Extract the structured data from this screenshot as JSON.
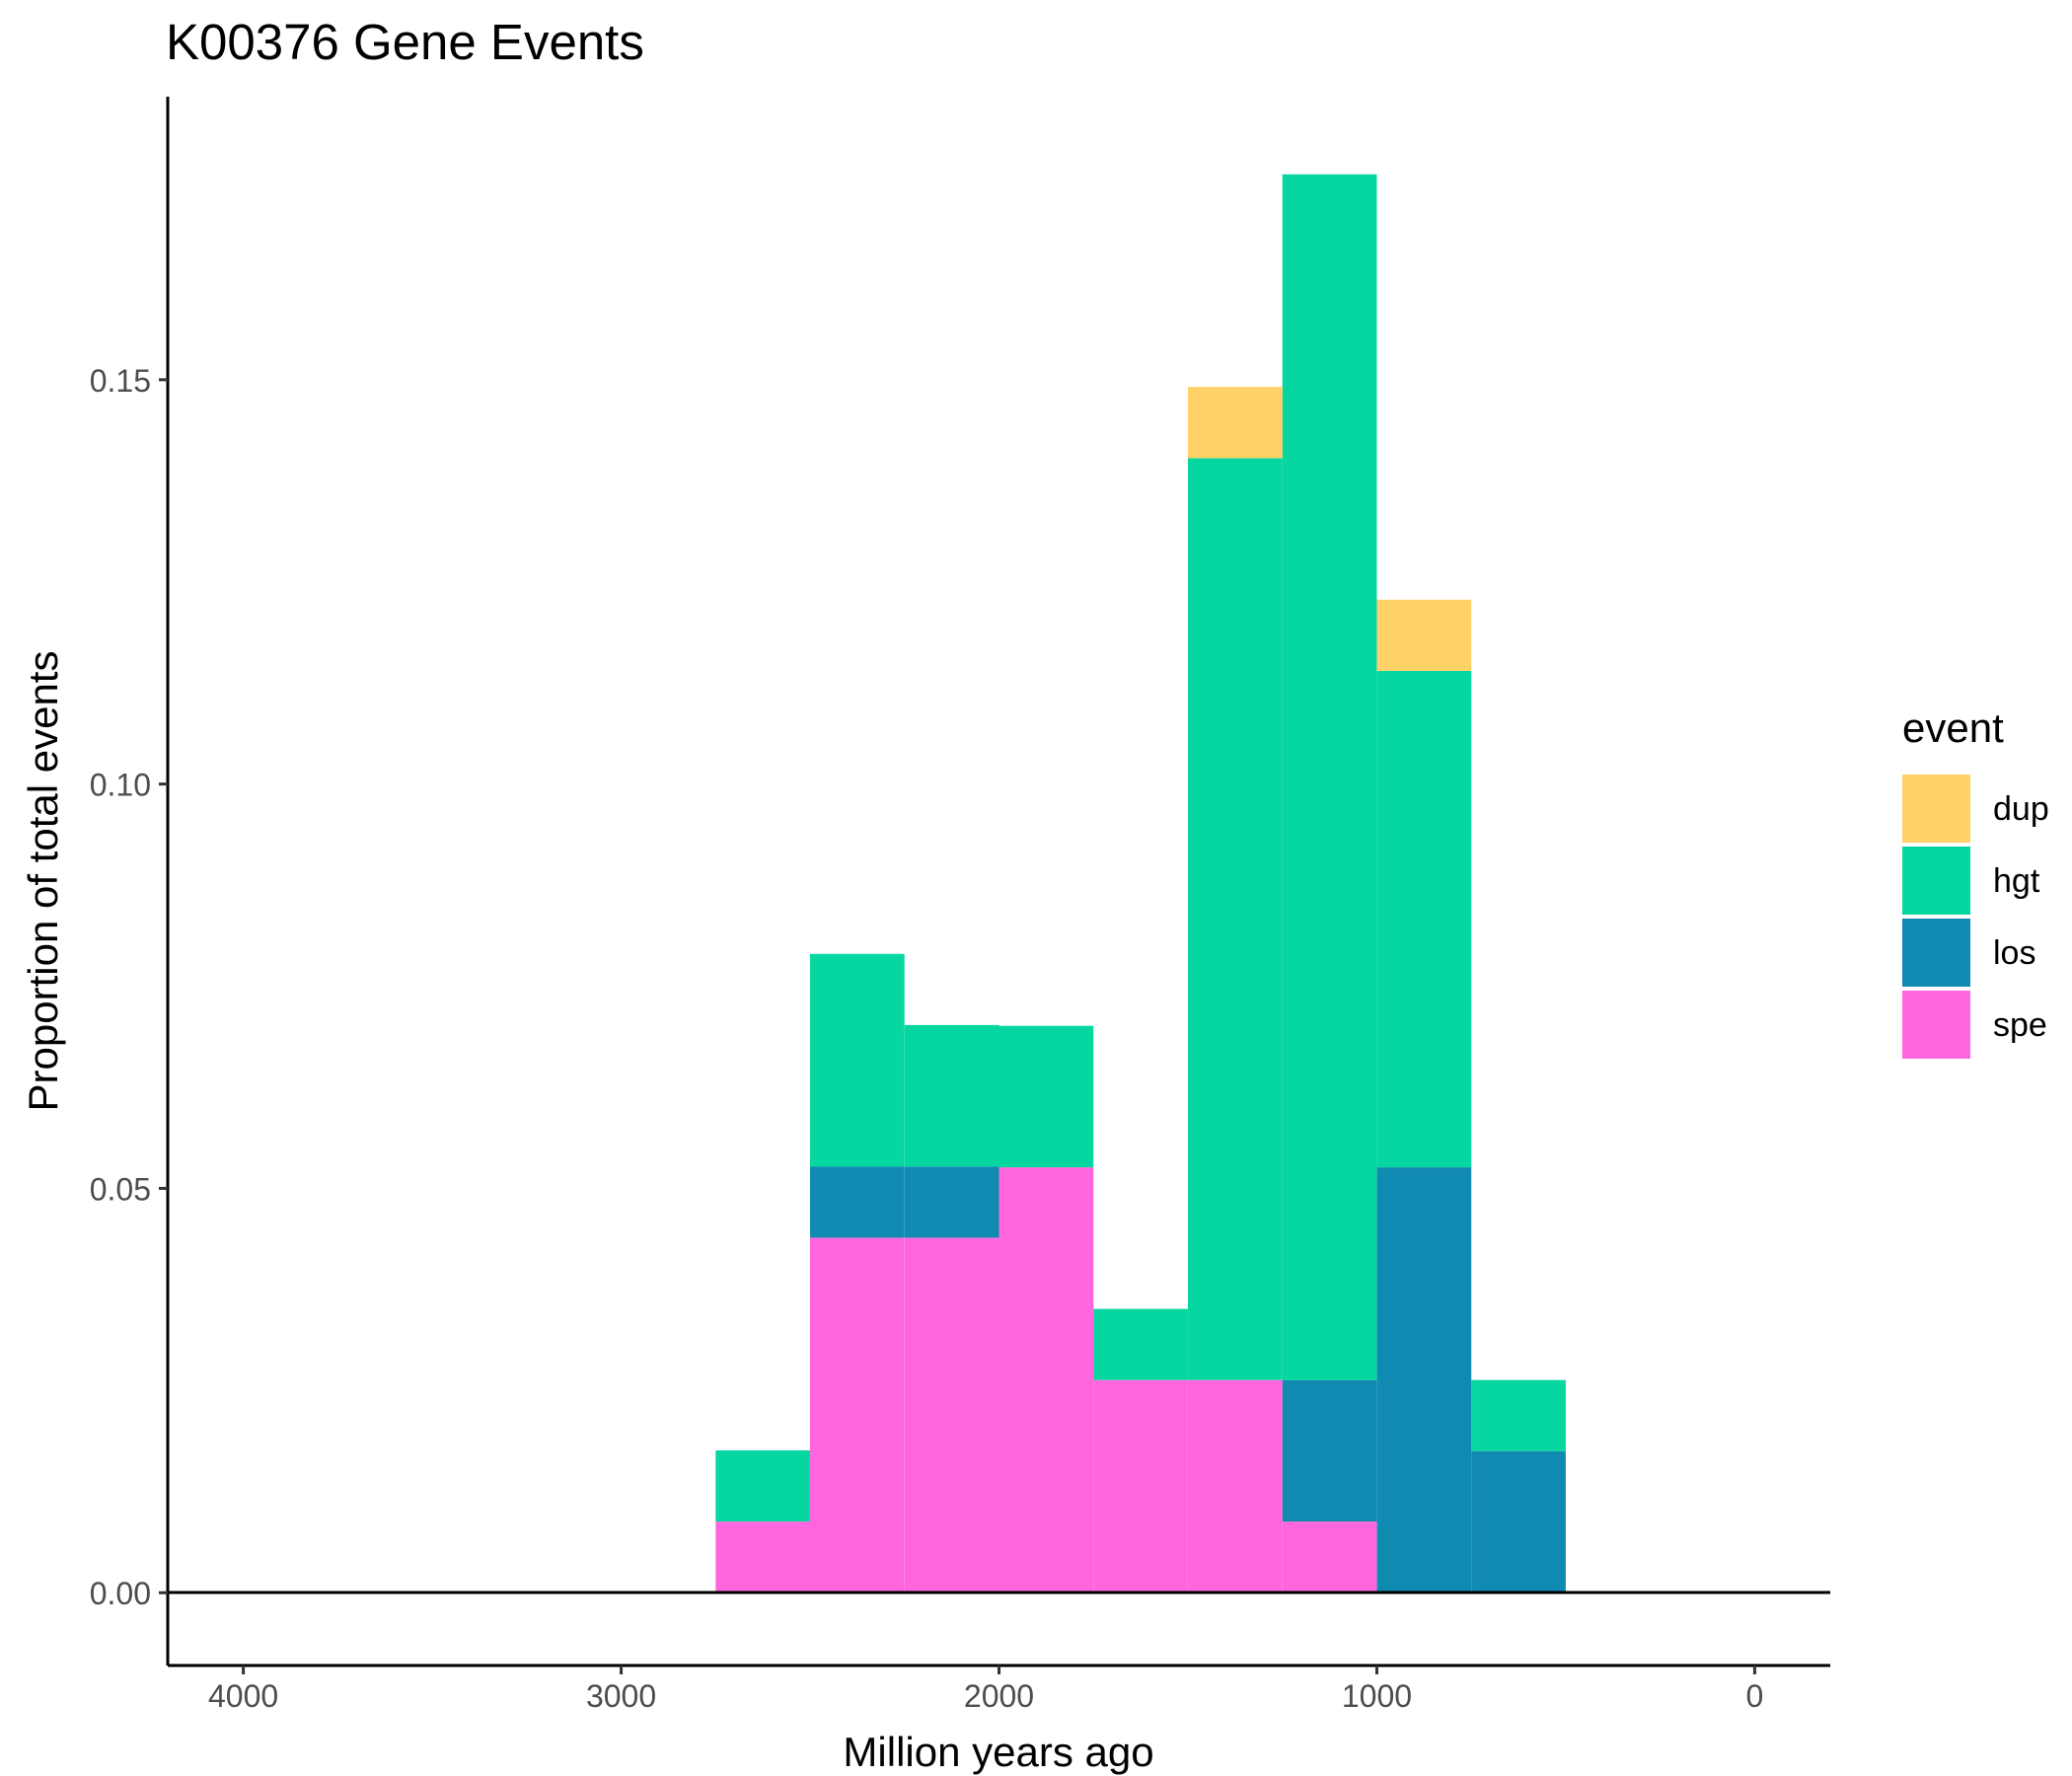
{
  "chart_data": {
    "type": "bar",
    "stacked": true,
    "title": "K00376 Gene Events",
    "xlabel": "Million years ago",
    "ylabel": "Proportion of total events",
    "x_reversed": true,
    "xlim": [
      4200,
      -200
    ],
    "ylim": [
      -0.009,
      0.185
    ],
    "x_ticks": [
      4000,
      3000,
      2000,
      1000,
      0
    ],
    "x_tick_labels": [
      "4000",
      "3000",
      "2000",
      "1000",
      "0"
    ],
    "y_ticks": [
      0,
      0.05,
      0.1,
      0.15
    ],
    "y_tick_labels": [
      "0.00",
      "0.05",
      "0.10",
      "0.15"
    ],
    "hline_y": 0,
    "bin_width": 250,
    "bins": [
      [
        2500,
        2750
      ],
      [
        2250,
        2500
      ],
      [
        2000,
        2250
      ],
      [
        1750,
        2000
      ],
      [
        1500,
        1750
      ],
      [
        1250,
        1500
      ],
      [
        1000,
        1250
      ],
      [
        750,
        1000
      ],
      [
        500,
        750
      ]
    ],
    "legend": {
      "title": "event",
      "position": "right",
      "entries": [
        "dup",
        "hgt",
        "los",
        "spe"
      ]
    },
    "series": [
      {
        "name": "spe",
        "color": "#FF66DD",
        "values": [
          0.0088,
          0.0439,
          0.0439,
          0.0526,
          0.0263,
          0.0263,
          0.0088,
          0.0,
          0.0
        ]
      },
      {
        "name": "los",
        "color": "#118AB2",
        "values": [
          0.0,
          0.0088,
          0.0088,
          0.0,
          0.0,
          0.0,
          0.0175,
          0.0526,
          0.0175
        ]
      },
      {
        "name": "hgt",
        "color": "#06D6A0",
        "values": [
          0.0088,
          0.0263,
          0.0175,
          0.0175,
          0.0088,
          0.114,
          0.1491,
          0.0614,
          0.0088
        ]
      },
      {
        "name": "dup",
        "color": "#FFD166",
        "values": [
          0.0,
          0.0,
          0.0,
          0.0,
          0.0,
          0.0088,
          0.0,
          0.0088,
          0.0
        ]
      }
    ],
    "grid": false
  }
}
